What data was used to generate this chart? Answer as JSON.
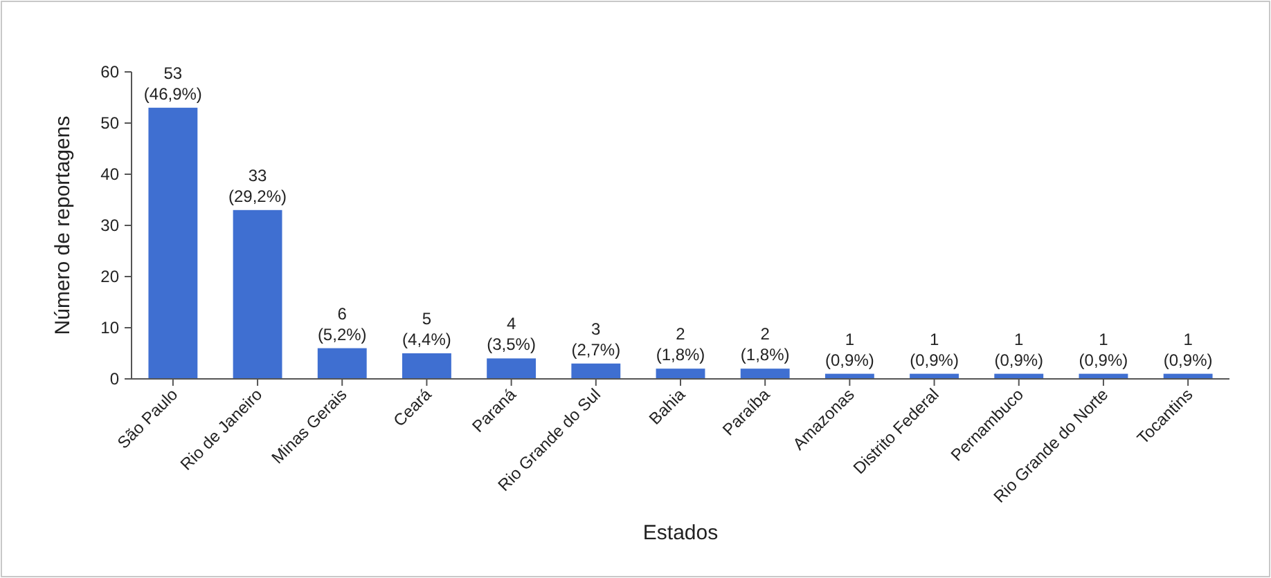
{
  "chart_data": {
    "type": "bar",
    "xlabel": "Estados",
    "ylabel": "Número de reportagens",
    "categories": [
      "São Paulo",
      "Rio de Janeiro",
      "Minas Gerais",
      "Ceará",
      "Paraná",
      "Rio Grande do Sul",
      "Bahia",
      "Paraíba",
      "Amazonas",
      "Distrito Federal",
      "Pernambuco",
      "Rio Grande do Norte",
      "Tocantins"
    ],
    "values": [
      53,
      33,
      6,
      5,
      4,
      3,
      2,
      2,
      1,
      1,
      1,
      1,
      1
    ],
    "value_labels": [
      "53\n(46,9%)",
      "33\n(29,2%)",
      "6\n(5,2%)",
      "5\n(4,4%)",
      "4\n(3,5%)",
      "3\n(2,7%)",
      "2\n(1,8%)",
      "2\n(1,8%)",
      "1\n(0,9%)",
      "1\n(0,9%)",
      "1\n(0,9%)",
      "1\n(0,9%)",
      "1\n(0,9%)"
    ],
    "color": "#3f6fd1",
    "ylim": [
      0,
      60
    ],
    "yticks": [
      0,
      10,
      20,
      30,
      40,
      50,
      60
    ],
    "grid": false
  }
}
